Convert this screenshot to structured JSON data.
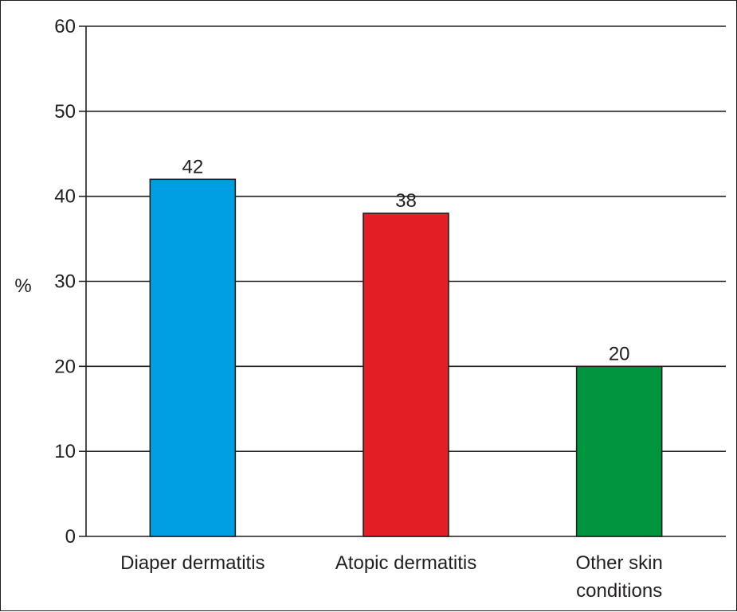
{
  "chart_data": {
    "type": "bar",
    "title": "",
    "xlabel": "",
    "ylabel": "%",
    "ylim": [
      0,
      60
    ],
    "yticks": [
      0,
      10,
      20,
      30,
      40,
      50,
      60
    ],
    "grid": "horizontal",
    "legend": "none",
    "categories": [
      [
        "Diaper dermatitis"
      ],
      [
        "Atopic dermatitis"
      ],
      [
        "Other skin",
        "conditions"
      ]
    ],
    "values": [
      42,
      38,
      20
    ],
    "data_labels": [
      "42",
      "38",
      "20"
    ],
    "colors": [
      "#009fe3",
      "#e31e24",
      "#009640"
    ]
  }
}
